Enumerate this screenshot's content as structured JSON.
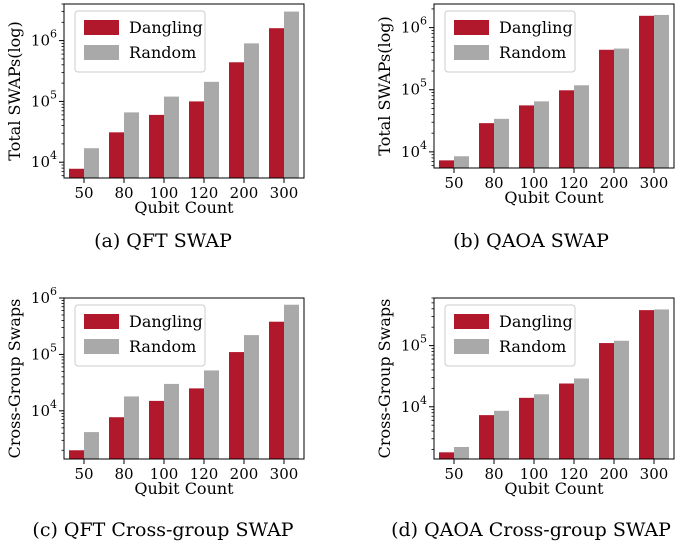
{
  "colors": {
    "dangling": "#b2182b",
    "random": "#a9a9a9"
  },
  "chart_data": [
    {
      "type": "bar",
      "caption": "(a) QFT SWAP",
      "xlabel": "Qubit Count",
      "ylabel": "Total SWAPs(log)",
      "yscale": "log",
      "ylim": [
        5500,
        4000000
      ],
      "yticks": [
        10000,
        100000,
        1000000
      ],
      "ytick_labels": [
        [
          "10",
          "4"
        ],
        [
          "10",
          "5"
        ],
        [
          "10",
          "6"
        ]
      ],
      "categories": [
        "50",
        "80",
        "100",
        "120",
        "200",
        "300"
      ],
      "series": [
        {
          "name": "Dangling",
          "values": [
            7800,
            31000,
            60000,
            100000,
            440000,
            1600000
          ]
        },
        {
          "name": "Random",
          "values": [
            17000,
            66000,
            120000,
            210000,
            900000,
            3000000
          ]
        }
      ],
      "legend": "top-left",
      "grid": false
    },
    {
      "type": "bar",
      "caption": "(b) QAOA SWAP",
      "xlabel": "Qubit Count",
      "ylabel": "Total SWAPs(log)",
      "yscale": "log",
      "ylim": [
        5500,
        2400000
      ],
      "yticks": [
        10000,
        100000,
        1000000
      ],
      "ytick_labels": [
        [
          "10",
          "4"
        ],
        [
          "10",
          "5"
        ],
        [
          "10",
          "6"
        ]
      ],
      "categories": [
        "50",
        "80",
        "100",
        "120",
        "200",
        "300"
      ],
      "series": [
        {
          "name": "Dangling",
          "values": [
            7300,
            29000,
            56000,
            98000,
            440000,
            1550000
          ]
        },
        {
          "name": "Random",
          "values": [
            8500,
            34000,
            65000,
            118000,
            460000,
            1600000
          ]
        }
      ],
      "legend": "top-left",
      "grid": false
    },
    {
      "type": "bar",
      "caption": "(c) QFT Cross-group SWAP",
      "xlabel": "Qubit Count",
      "ylabel": "Cross-Group Swaps",
      "yscale": "log",
      "ylim": [
        1400,
        1000000
      ],
      "yticks": [
        10000,
        100000,
        1000000
      ],
      "ytick_labels": [
        [
          "10",
          "4"
        ],
        [
          "10",
          "5"
        ],
        [
          "10",
          "6"
        ]
      ],
      "categories": [
        "50",
        "80",
        "100",
        "120",
        "200",
        "300"
      ],
      "series": [
        {
          "name": "Dangling",
          "values": [
            2000,
            7700,
            15000,
            25000,
            110000,
            380000
          ]
        },
        {
          "name": "Random",
          "values": [
            4200,
            18000,
            30000,
            52000,
            220000,
            760000
          ]
        }
      ],
      "legend": "top-left",
      "grid": false
    },
    {
      "type": "bar",
      "caption": "(d) QAOA Cross-group SWAP",
      "xlabel": "Qubit Count",
      "ylabel": "Cross-Group Swaps",
      "yscale": "log",
      "ylim": [
        1400,
        600000
      ],
      "yticks": [
        10000,
        100000
      ],
      "ytick_labels": [
        [
          "10",
          "4"
        ],
        [
          "10",
          "5"
        ]
      ],
      "categories": [
        "50",
        "80",
        "100",
        "120",
        "200",
        "300"
      ],
      "series": [
        {
          "name": "Dangling",
          "values": [
            1800,
            7300,
            14000,
            24000,
            110000,
            380000
          ]
        },
        {
          "name": "Random",
          "values": [
            2200,
            8600,
            16000,
            29000,
            120000,
            390000
          ]
        }
      ],
      "legend": "top-left",
      "grid": false
    }
  ]
}
